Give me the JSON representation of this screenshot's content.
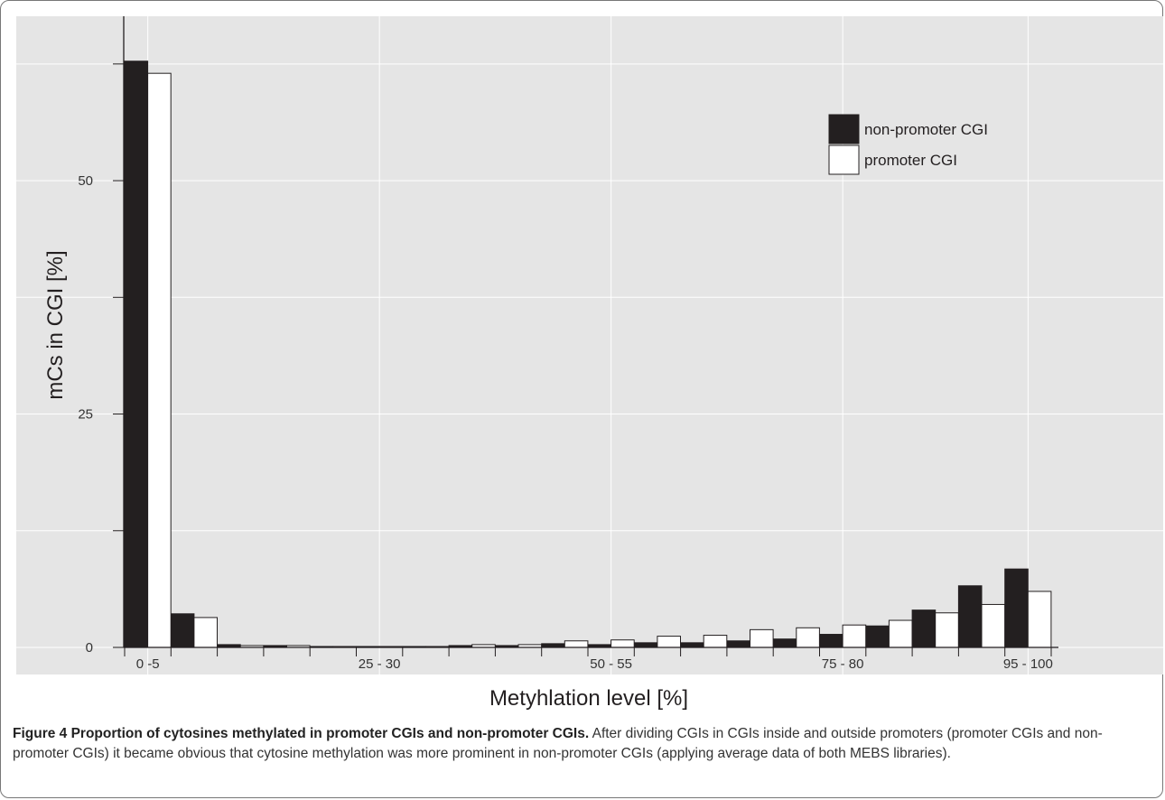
{
  "chart_data": {
    "type": "bar",
    "xlabel": "Metyhlation level [%]",
    "ylabel": "mCs in CGI [%]",
    "ylim": [
      0,
      65
    ],
    "yticks": [
      "0",
      "25",
      "50"
    ],
    "categories": [
      "0 -5",
      "5 - 10",
      "10 - 15",
      "15 - 20",
      "20 - 25",
      "25 - 30",
      "30 - 35",
      "35 - 40",
      "40 - 45",
      "45 - 50",
      "50 - 55",
      "55 - 60",
      "60 - 65",
      "65 - 70",
      "70 - 75",
      "75 - 80",
      "80 - 85",
      "85 - 90",
      "90 - 95",
      "95 - 100"
    ],
    "tick_labels": [
      "0 -5",
      "",
      "",
      "",
      "",
      "25 - 30",
      "",
      "",
      "",
      "",
      "50 - 55",
      "",
      "",
      "",
      "",
      "75 - 80",
      "",
      "",
      "",
      "95 - 100"
    ],
    "series": [
      {
        "name": "non-promoter CGI",
        "color": "#231f20",
        "values": [
          62.8,
          3.6,
          0.3,
          0.2,
          0.1,
          0.1,
          0.1,
          0.2,
          0.2,
          0.4,
          0.3,
          0.5,
          0.5,
          0.7,
          0.9,
          1.4,
          2.3,
          4.0,
          6.6,
          8.4
        ]
      },
      {
        "name": "promoter CGI",
        "color": "#ffffff",
        "values": [
          61.5,
          3.2,
          0.2,
          0.2,
          0.1,
          0.1,
          0.1,
          0.3,
          0.3,
          0.7,
          0.8,
          1.2,
          1.3,
          1.9,
          2.1,
          2.4,
          2.9,
          3.7,
          4.6,
          6.0
        ]
      }
    ],
    "legend": "top-right",
    "grid": true
  },
  "caption": {
    "bold": "Figure 4 Proportion of cytosines methylated in promoter CGIs and non-promoter CGIs.",
    "text": " After dividing CGIs in CGIs inside and outside promoters (promoter CGIs and non-promoter CGIs) it became obvious that cytosine methylation was more prominent in non-promoter CGIs (applying average data of both MEBS libraries)."
  }
}
